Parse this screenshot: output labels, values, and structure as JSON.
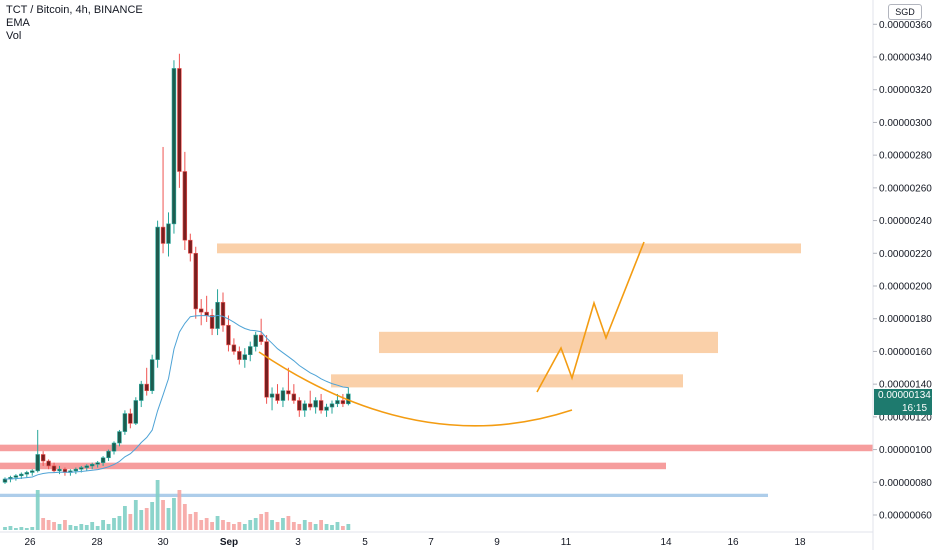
{
  "header": {
    "symbol_line": "TCT / Bitcoin, 4h, BINANCE",
    "indicator_1": "EMA",
    "indicator_2": "Vol"
  },
  "currency": "SGD",
  "last_price": "0.00000134",
  "countdown": "16:15",
  "colors": {
    "up": "#26a69a",
    "up_body": "#1e5c4f",
    "down": "#ef5350",
    "down_body": "#7a1f1f",
    "ema": "#4ea3d6",
    "zone_orange": "#f9c89a",
    "zone_red": "#f48c8c",
    "zone_blue": "#9fc4e6",
    "drawing": "#f39c12",
    "price_tag": "#1e7a6e"
  },
  "chart_data": {
    "type": "candlestick",
    "y_ticks": [
      "0.00000360",
      "0.00000340",
      "0.00000320",
      "0.00000300",
      "0.00000280",
      "0.00000260",
      "0.00000240",
      "0.00000220",
      "0.00000200",
      "0.00000180",
      "0.00000160",
      "0.00000140",
      "0.00000120",
      "0.00000100",
      "0.00000080",
      "0.00000060"
    ],
    "x_ticks": [
      "26",
      "28",
      "30",
      "Sep",
      "3",
      "5",
      "7",
      "9",
      "11",
      "14",
      "16",
      "18"
    ],
    "ylim": [
      5e-07,
      3.65e-06
    ],
    "zones": [
      {
        "color": "orange",
        "from": 2.2e-06,
        "to": 2.26e-06
      },
      {
        "color": "orange",
        "from": 1.59e-06,
        "to": 1.72e-06
      },
      {
        "color": "orange",
        "from": 1.38e-06,
        "to": 1.46e-06
      },
      {
        "color": "red",
        "from": 9.9e-07,
        "to": 1.03e-06
      },
      {
        "color": "red",
        "from": 8.8e-07,
        "to": 9.2e-07
      },
      {
        "color": "blue",
        "from": 7.1e-07,
        "to": 7.3e-07
      }
    ]
  }
}
